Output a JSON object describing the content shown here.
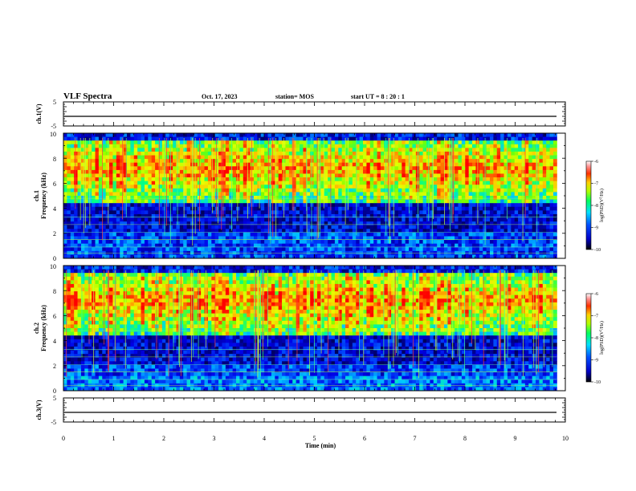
{
  "header": {
    "title": "VLF Spectra",
    "date": "Oct. 17, 2023",
    "station": "station= MOS",
    "start": "start  UT  =   8  : 20 : 1"
  },
  "chart_data": [
    {
      "id": "ch1-waveform",
      "type": "line",
      "ylabel": "ch.1(V)",
      "ylim": [
        -5,
        5
      ],
      "y_ticks": [
        "5",
        "-5"
      ],
      "x": [
        0,
        10
      ],
      "values": [
        -1,
        -1
      ]
    },
    {
      "id": "ch1-spectrogram",
      "type": "heatmap",
      "ylabel": "ch.1\nFrequency (kHz)",
      "ylim": [
        0,
        10
      ],
      "y_ticks": [
        "0",
        "2",
        "4",
        "6",
        "8",
        "10"
      ],
      "xlim": [
        0,
        10
      ],
      "data_extent_x": [
        0,
        9.83
      ],
      "colorbar": {
        "label": "log(PSD)(V²/Hz)",
        "range": [
          -10,
          -6
        ],
        "ticks": [
          "-10",
          "-9",
          "-8",
          "-7",
          "-6"
        ]
      }
    },
    {
      "id": "ch2-spectrogram",
      "type": "heatmap",
      "ylabel": "ch.2\nFrequency (kHz)",
      "ylim": [
        0,
        10
      ],
      "y_ticks": [
        "0",
        "2",
        "4",
        "6",
        "8",
        "10"
      ],
      "xlim": [
        0,
        10
      ],
      "data_extent_x": [
        0,
        9.83
      ],
      "colorbar": {
        "label": "log(PSD)(V²/Hz)",
        "range": [
          -10,
          -6
        ],
        "ticks": [
          "-10",
          "-9",
          "-8",
          "-7",
          "-6"
        ]
      }
    },
    {
      "id": "ch3-waveform",
      "type": "line",
      "ylabel": "ch.3(V)",
      "ylim": [
        -5,
        5
      ],
      "y_ticks": [
        "5",
        "-5"
      ],
      "x": [
        0,
        10
      ],
      "values": [
        -1,
        -1
      ]
    }
  ],
  "x_axis": {
    "label": "Time  (min)",
    "ticks": [
      "0",
      "1",
      "2",
      "3",
      "4",
      "5",
      "6",
      "7",
      "8",
      "9",
      "10"
    ],
    "range": [
      0,
      10
    ]
  },
  "colors": {
    "scale": [
      "#000000",
      "#00007a",
      "#0000ff",
      "#00c8ff",
      "#00ff80",
      "#a0ff00",
      "#ffff00",
      "#ff8000",
      "#ff0000",
      "#ffffff"
    ]
  }
}
